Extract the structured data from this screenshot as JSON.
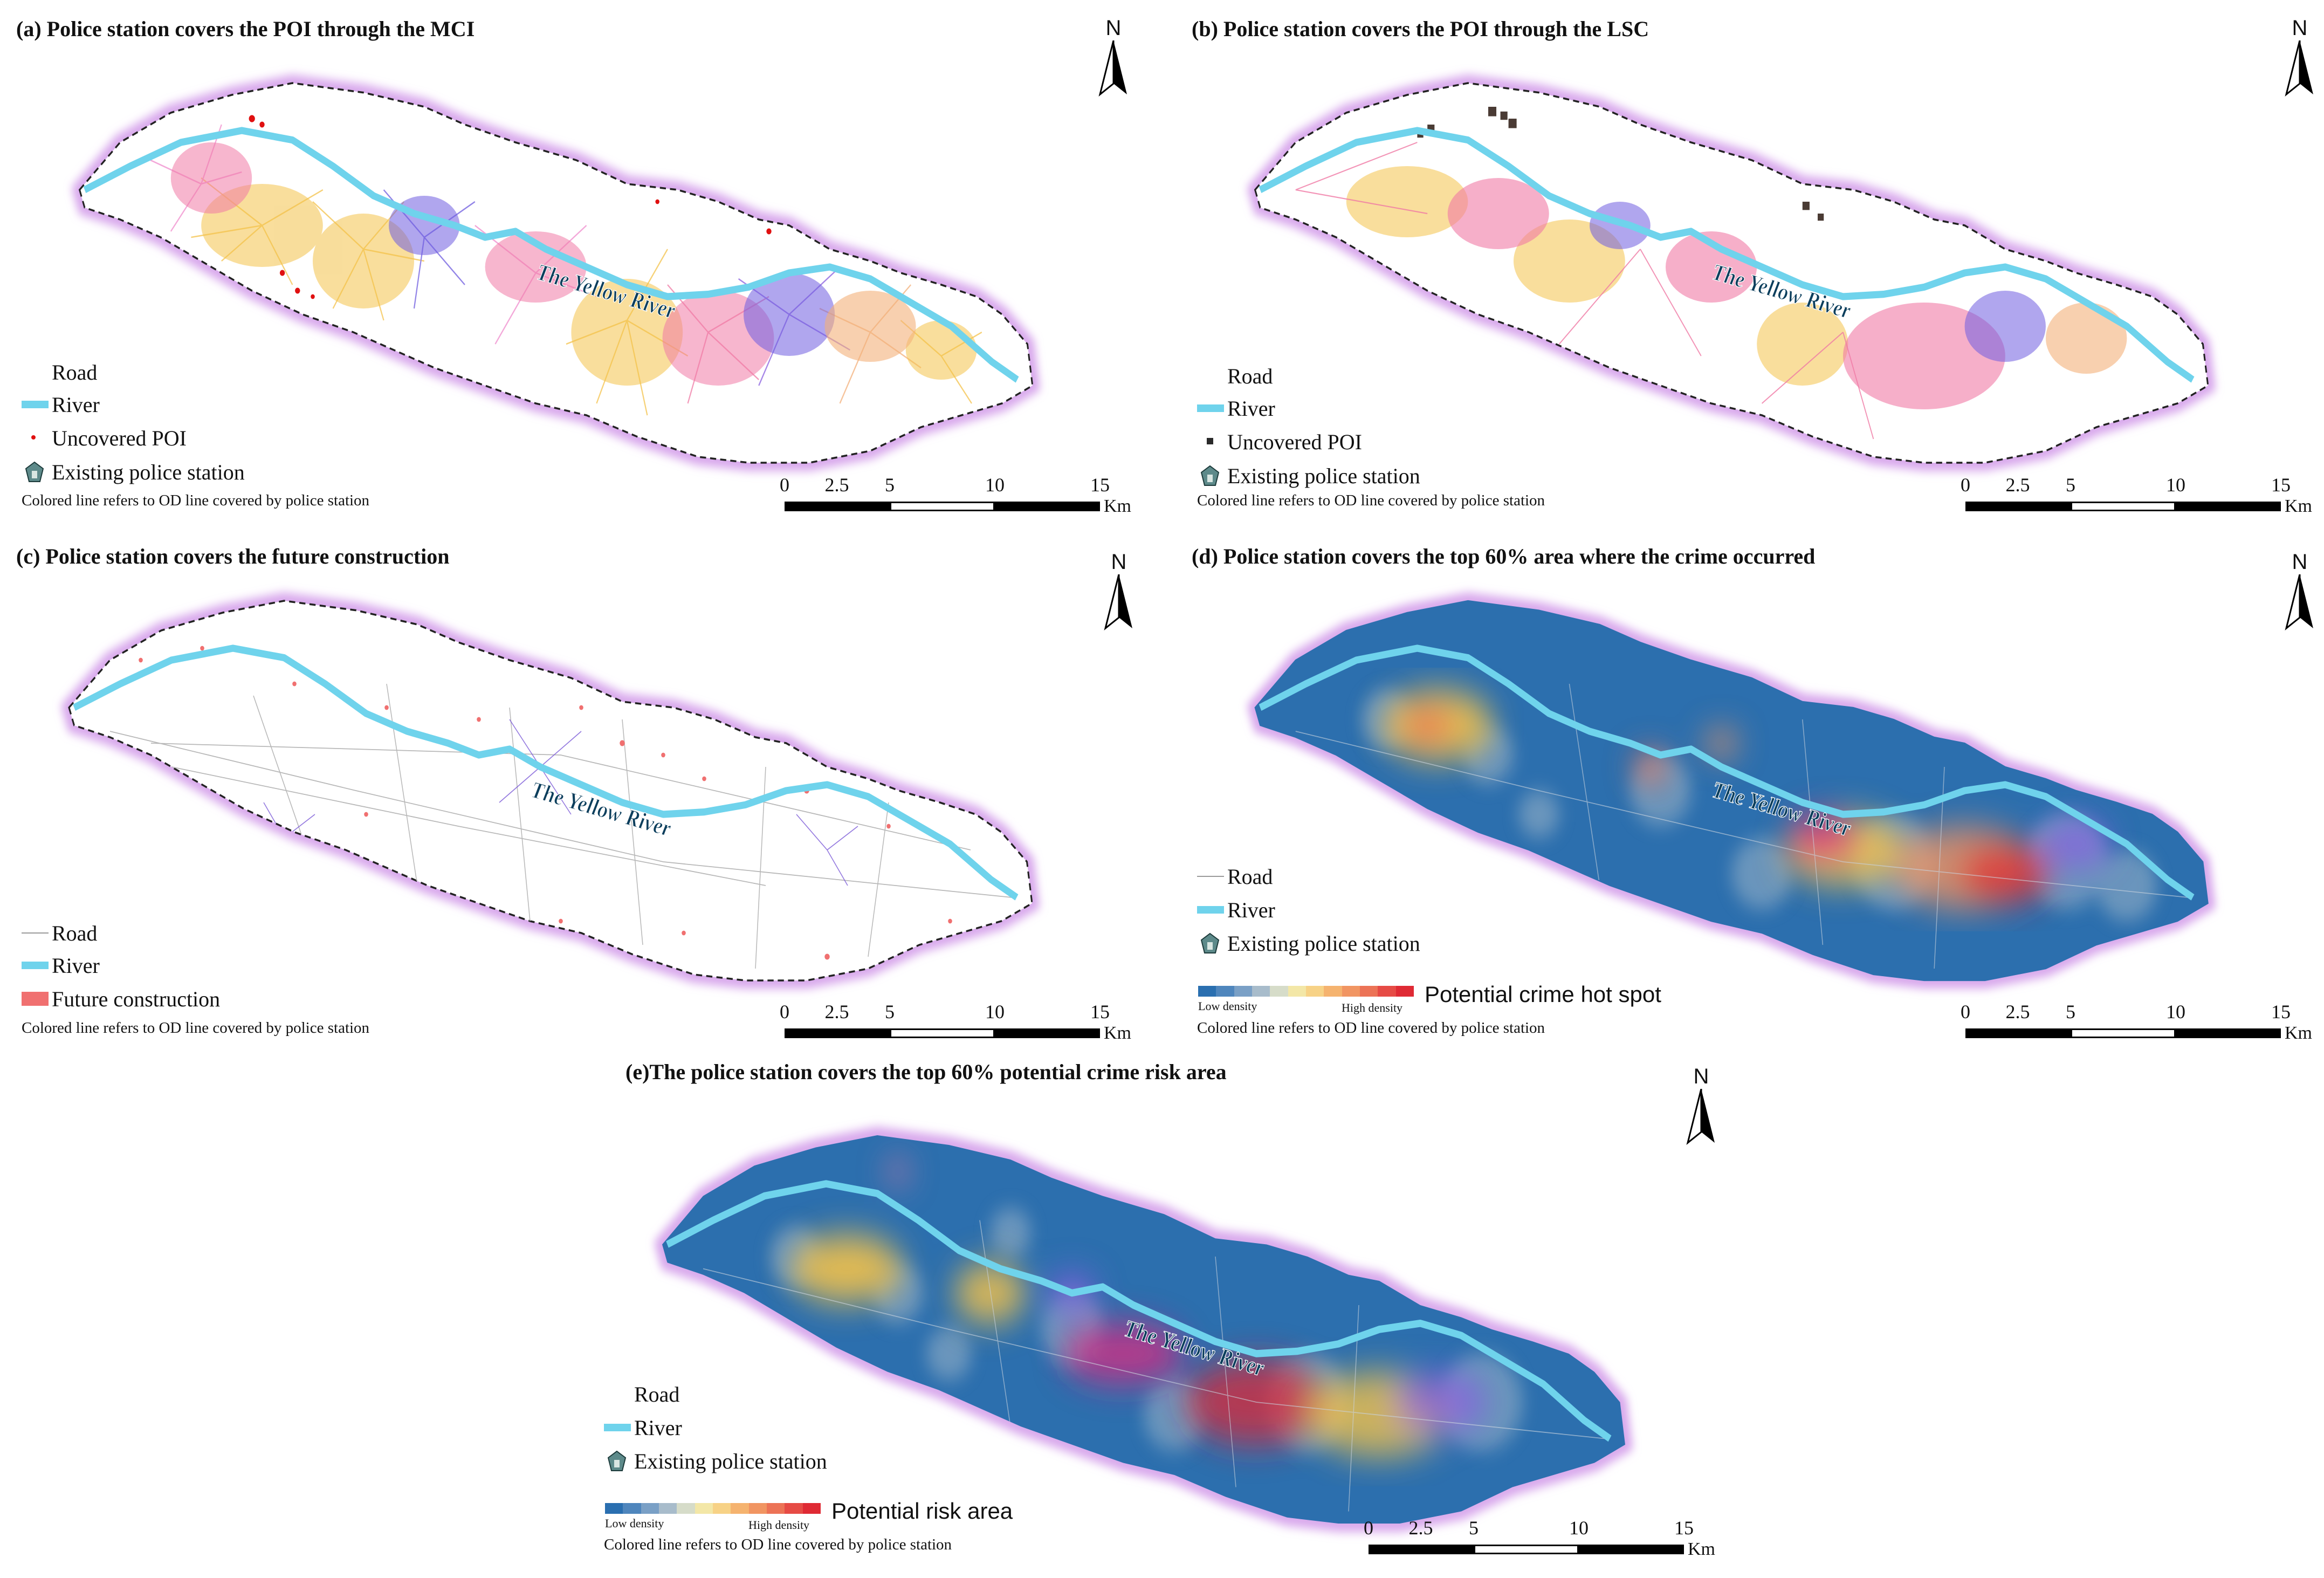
{
  "colors": {
    "boundary_glow": "#d8a7ec",
    "boundary_dash": "#222222",
    "river": "#6fd3ec",
    "ocean_blue": "#2c6fae",
    "uncovered_poi_red": "#e01010",
    "uncovered_poi_black": "#2a2a2a",
    "future_construction": "#f07070",
    "road": "#9a9a9a"
  },
  "river_label": "The Yellow River",
  "north_label": "N",
  "scale": {
    "ticks": [
      "0",
      "2.5",
      "5",
      "10",
      "15"
    ],
    "unit": "Km"
  },
  "od_note": "Colored line refers to OD line covered by police station",
  "panels": {
    "a": {
      "title": "(a) Police station covers the POI through the MCI",
      "legend": {
        "road": "Road",
        "river": "River",
        "uncovered": "Uncovered POI",
        "station": "Existing police station"
      }
    },
    "b": {
      "title": "(b) Police station covers the POI through the LSC",
      "legend": {
        "road": "Road",
        "river": "River",
        "uncovered": "Uncovered POI",
        "station": "Existing police station"
      }
    },
    "c": {
      "title": "(c) Police station covers the future construction",
      "legend": {
        "road": "Road",
        "river": "River",
        "future": "Future construction"
      }
    },
    "d": {
      "title": "(d) Police station covers the top 60% area where the crime occurred",
      "legend": {
        "road": "Road",
        "river": "River",
        "station": "Existing police station"
      },
      "ramp": {
        "low": "Low density",
        "high": "High density",
        "title": "Potential crime hot spot"
      }
    },
    "e": {
      "title": "(e)The police station covers the top 60% potential crime risk area",
      "legend": {
        "road": "Road",
        "river": "River",
        "station": "Existing police station"
      },
      "ramp": {
        "low": "Low density",
        "high": "High density",
        "title": "Potential risk area"
      }
    }
  },
  "ramp_colors": [
    "#2a6fb0",
    "#4f86bd",
    "#7aa0c6",
    "#a8bccb",
    "#d6dcc9",
    "#f3e7a7",
    "#f7d286",
    "#f5b36f",
    "#f19562",
    "#ec7356",
    "#e64b45",
    "#df2a34"
  ]
}
